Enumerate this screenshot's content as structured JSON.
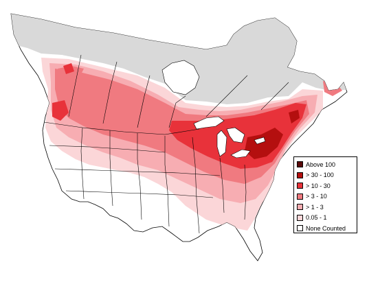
{
  "colors": {
    "background": "#ffffff",
    "uncovered_north": "#d9d9d9",
    "boundary_lines": "#000000",
    "lakes": "#ffffff"
  },
  "legend": {
    "items": [
      {
        "label": "Above 100",
        "color": "#5a0a0a"
      },
      {
        "label": "> 30 - 100",
        "color": "#b40f0f"
      },
      {
        "label": "> 10 - 30",
        "color": "#e8323a"
      },
      {
        "label": "> 3 - 10",
        "color": "#f07a80"
      },
      {
        "label": "> 1 - 3",
        "color": "#f7adb2"
      },
      {
        "label": "0.05 - 1",
        "color": "#fbd6d8"
      },
      {
        "label": "None Counted",
        "color": "#ffffff"
      }
    ]
  }
}
